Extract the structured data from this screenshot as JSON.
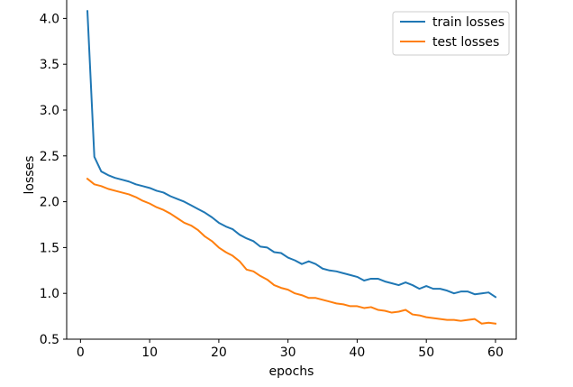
{
  "chart_data": {
    "type": "line",
    "xlabel": "epochs",
    "ylabel": "losses",
    "xlim": [
      -2,
      63
    ],
    "ylim": [
      0.5,
      4.25
    ],
    "xticks": [
      0,
      10,
      20,
      30,
      40,
      50,
      60
    ],
    "yticks": [
      0.5,
      1.0,
      1.5,
      2.0,
      2.5,
      3.0,
      3.5,
      4.0
    ],
    "xtick_labels": [
      "0",
      "10",
      "20",
      "30",
      "40",
      "50",
      "60"
    ],
    "ytick_labels": [
      "0.5",
      "1.0",
      "1.5",
      "2.0",
      "2.5",
      "3.0",
      "3.5",
      "4.0"
    ],
    "grid": false,
    "legend_position": "top-right",
    "x": [
      1,
      2,
      3,
      4,
      5,
      6,
      7,
      8,
      9,
      10,
      11,
      12,
      13,
      14,
      15,
      16,
      17,
      18,
      19,
      20,
      21,
      22,
      23,
      24,
      25,
      26,
      27,
      28,
      29,
      30,
      31,
      32,
      33,
      34,
      35,
      36,
      37,
      38,
      39,
      40,
      41,
      42,
      43,
      44,
      45,
      46,
      47,
      48,
      49,
      50,
      51,
      52,
      53,
      54,
      55,
      56,
      57,
      58,
      59,
      60
    ],
    "series": [
      {
        "name": "train losses",
        "color": "#1f77b4",
        "values": [
          4.08,
          2.49,
          2.33,
          2.29,
          2.26,
          2.24,
          2.22,
          2.19,
          2.17,
          2.15,
          2.12,
          2.1,
          2.06,
          2.03,
          2.0,
          1.96,
          1.92,
          1.88,
          1.83,
          1.77,
          1.73,
          1.7,
          1.64,
          1.6,
          1.57,
          1.51,
          1.5,
          1.45,
          1.44,
          1.39,
          1.36,
          1.32,
          1.35,
          1.32,
          1.27,
          1.25,
          1.24,
          1.22,
          1.2,
          1.18,
          1.14,
          1.16,
          1.16,
          1.13,
          1.11,
          1.09,
          1.12,
          1.09,
          1.05,
          1.08,
          1.05,
          1.05,
          1.03,
          1.0,
          1.02,
          1.02,
          0.99,
          1.0,
          1.01,
          0.96
        ]
      },
      {
        "name": "test losses",
        "color": "#ff7f0e",
        "values": [
          2.25,
          2.19,
          2.17,
          2.14,
          2.12,
          2.1,
          2.08,
          2.05,
          2.01,
          1.98,
          1.94,
          1.91,
          1.87,
          1.82,
          1.77,
          1.74,
          1.69,
          1.62,
          1.57,
          1.5,
          1.45,
          1.41,
          1.35,
          1.26,
          1.24,
          1.19,
          1.15,
          1.09,
          1.06,
          1.04,
          1.0,
          0.98,
          0.95,
          0.95,
          0.93,
          0.91,
          0.89,
          0.88,
          0.86,
          0.86,
          0.84,
          0.85,
          0.82,
          0.81,
          0.79,
          0.8,
          0.82,
          0.77,
          0.76,
          0.74,
          0.73,
          0.72,
          0.71,
          0.71,
          0.7,
          0.71,
          0.72,
          0.67,
          0.68,
          0.67
        ]
      }
    ]
  }
}
